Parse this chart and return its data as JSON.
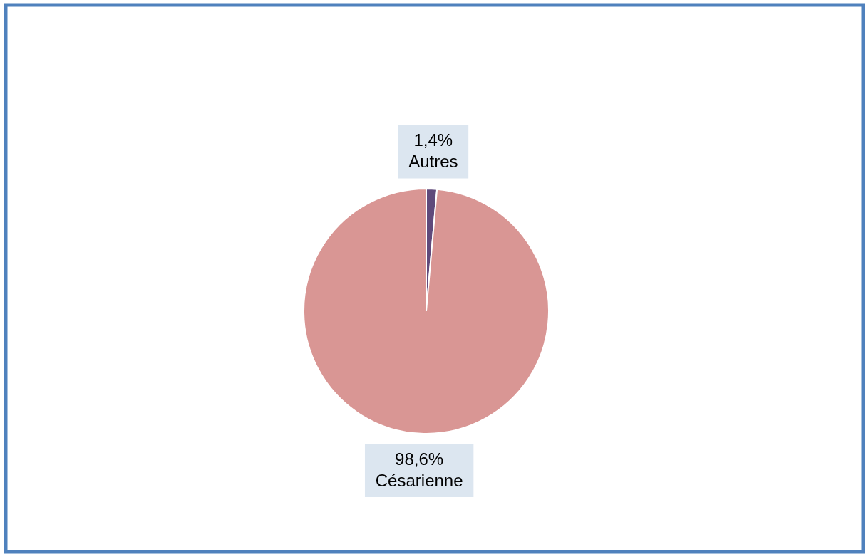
{
  "chart_data": {
    "type": "pie",
    "categories": [
      "Autres",
      "Césarienne"
    ],
    "values": [
      1.4,
      98.6
    ],
    "value_labels": [
      "1,4%",
      "98,6%"
    ],
    "colors": [
      "#604a7b",
      "#d99694"
    ]
  }
}
